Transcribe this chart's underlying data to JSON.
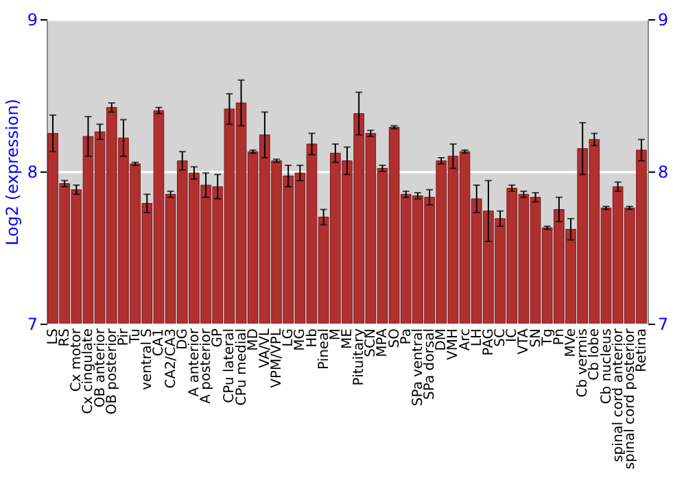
{
  "chart_data": {
    "type": "bar",
    "ylabel": "Log2 (expression)",
    "categories": [
      "LS",
      "RS",
      "Cx motor",
      "Cx cingulate",
      "OB anterior",
      "OB posterior",
      "Pir",
      "Tu",
      "ventral S",
      "CA1",
      "CA2/CA3",
      "DG",
      "A anterior",
      "A posterior",
      "GP",
      "CPu lateral",
      "CPu medial",
      "MD",
      "VA/VL",
      "VPM/VPL",
      "LG",
      "MG",
      "Hb",
      "Pineal",
      "M",
      "ME",
      "Pituitary",
      "SCN",
      "MPA",
      "SO",
      "Pa",
      "SPa ventral",
      "SPa dorsal",
      "DM",
      "VMH",
      "Arc",
      "LH",
      "PAG",
      "SC",
      "IC",
      "VTA",
      "SN",
      "Tg",
      "Pn",
      "MVe",
      "Cb vermis",
      "Cb lobe",
      "Cb nucleus",
      "spinal cord anterior",
      "spinal cord posterior",
      "Retina"
    ],
    "values": [
      8.25,
      7.92,
      7.88,
      8.23,
      8.26,
      8.42,
      8.22,
      8.05,
      7.79,
      8.4,
      7.85,
      8.07,
      7.99,
      7.91,
      7.9,
      8.41,
      8.45,
      8.13,
      8.24,
      8.07,
      7.97,
      7.99,
      8.18,
      7.7,
      8.12,
      8.07,
      8.38,
      8.25,
      8.02,
      8.29,
      7.85,
      7.84,
      7.83,
      8.07,
      8.1,
      8.13,
      7.82,
      7.74,
      7.69,
      7.89,
      7.85,
      7.83,
      7.63,
      7.75,
      7.62,
      8.15,
      8.21,
      7.76,
      7.9,
      7.76,
      8.14
    ],
    "errors": [
      0.12,
      0.02,
      0.03,
      0.13,
      0.05,
      0.03,
      0.12,
      0.01,
      0.06,
      0.02,
      0.02,
      0.06,
      0.04,
      0.08,
      0.08,
      0.1,
      0.15,
      0.01,
      0.15,
      0.01,
      0.07,
      0.05,
      0.07,
      0.05,
      0.06,
      0.09,
      0.14,
      0.02,
      0.02,
      0.01,
      0.02,
      0.02,
      0.05,
      0.02,
      0.08,
      0.01,
      0.09,
      0.2,
      0.05,
      0.02,
      0.02,
      0.03,
      0.01,
      0.08,
      0.07,
      0.17,
      0.04,
      0.01,
      0.03,
      0.01,
      0.07
    ],
    "color": "#b03030",
    "ylim": [
      7,
      9
    ],
    "yticks": [
      7,
      8,
      9
    ],
    "y2lim": [
      7,
      9
    ],
    "y2ticks": [
      7,
      8,
      9
    ],
    "grid": "y",
    "legend": false
  }
}
